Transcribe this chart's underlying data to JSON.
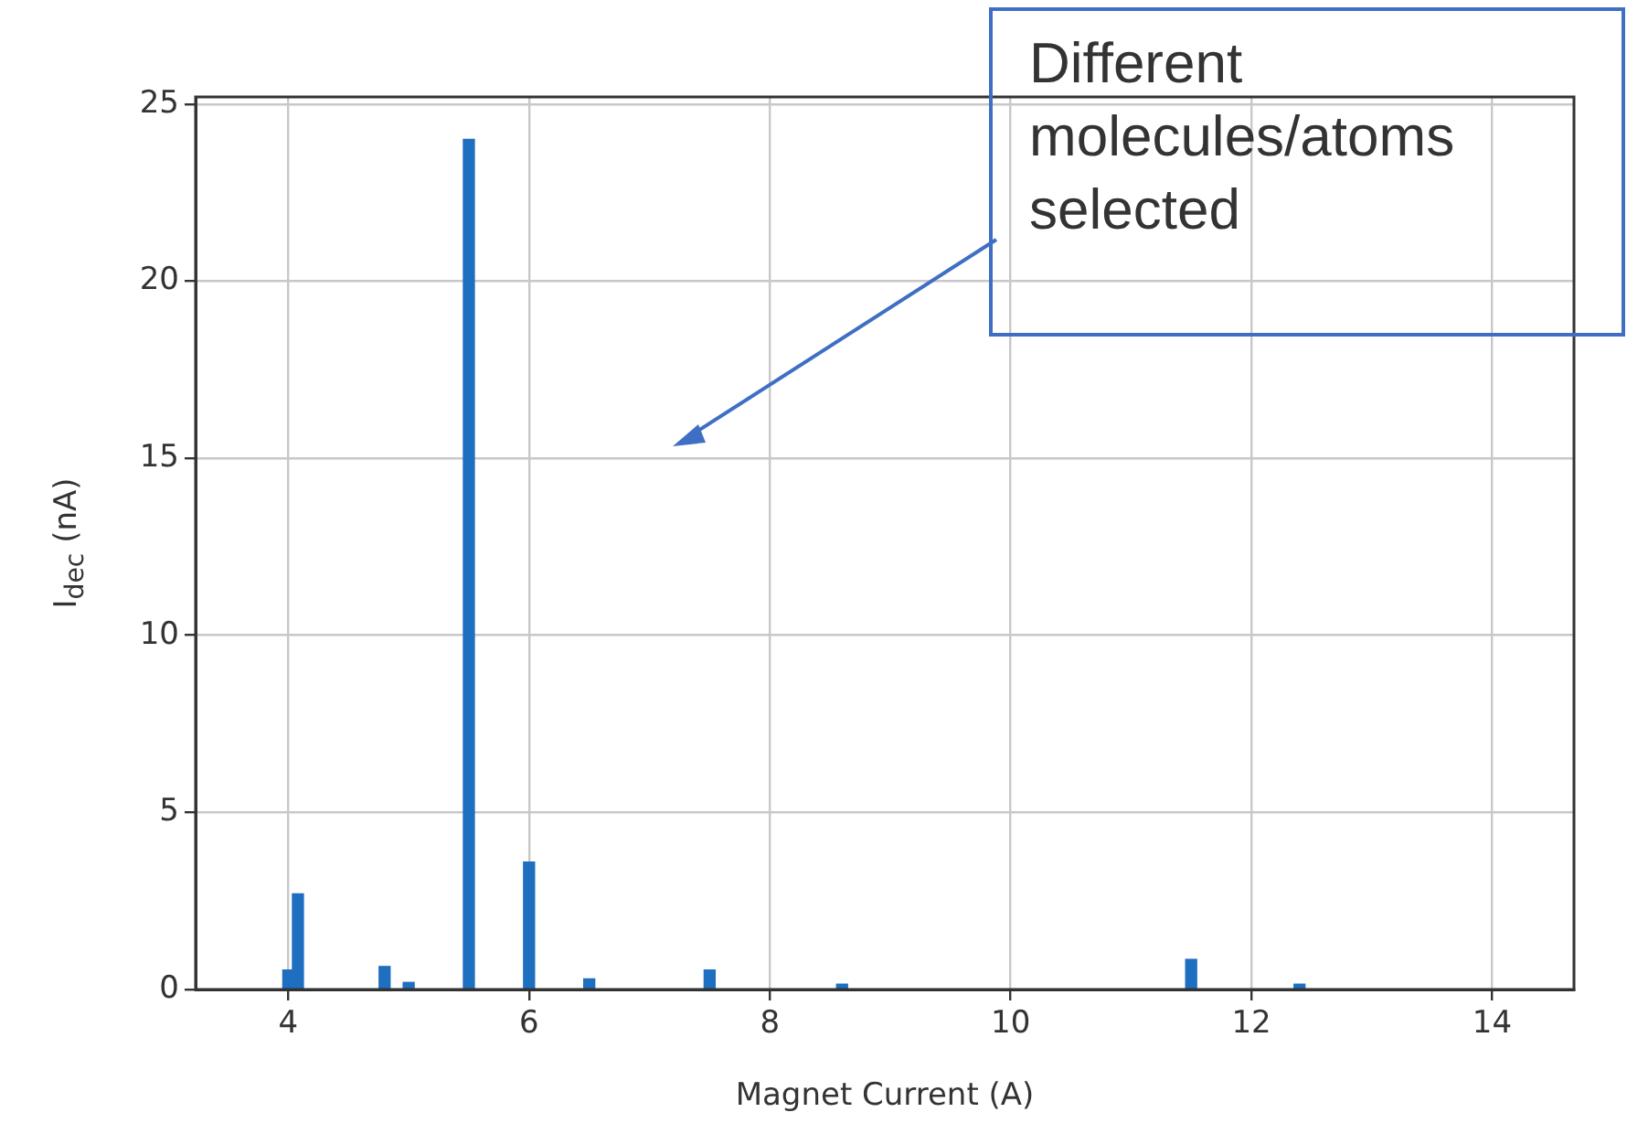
{
  "chart_data": {
    "type": "bar",
    "xlabel": "Magnet Current (A)",
    "ylabel": "I$_{dec}$ (nA)",
    "x": [
      4.0,
      4.08,
      4.8,
      5.0,
      5.5,
      6.0,
      6.5,
      7.5,
      8.6,
      11.5,
      12.4
    ],
    "values": [
      0.55,
      2.7,
      0.65,
      0.2,
      24,
      3.6,
      0.3,
      0.55,
      0.15,
      0.85,
      0.15
    ],
    "color": "#1f6fc0",
    "xlim": [
      3.23,
      14.68
    ],
    "xticks": [
      4,
      6,
      8,
      10,
      12,
      14
    ],
    "ylim": [
      0,
      25.2
    ],
    "yticks": [
      0,
      5,
      10,
      15,
      20,
      25
    ],
    "grid": true,
    "legend": false,
    "annotations": [
      "Different molecules/atoms selected"
    ]
  }
}
